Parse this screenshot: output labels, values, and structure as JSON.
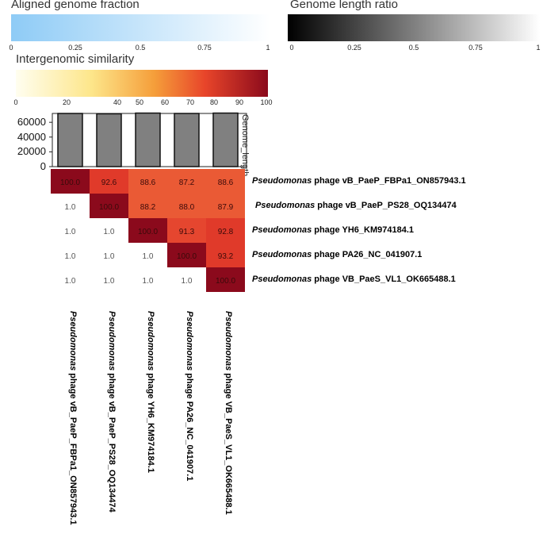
{
  "legends": {
    "aligned": {
      "title": "Aligned genome fraction",
      "ticks": [
        "0",
        "0.25",
        "0.5",
        "0.75",
        "1"
      ],
      "colors": [
        "#8ecbf6",
        "#ffffff"
      ]
    },
    "length_ratio": {
      "title": "Genome length ratio",
      "ticks": [
        "0",
        "0.25",
        "0.5",
        "0.75",
        "1"
      ],
      "colors": [
        "#000000",
        "#ffffff"
      ]
    },
    "similarity": {
      "title": "Intergenomic similarity",
      "ticks": [
        "0",
        "20",
        "40",
        "50",
        "60",
        "70",
        "80",
        "90",
        "100"
      ],
      "colors": [
        "#fffef0",
        "#fde68a",
        "#f59e3a",
        "#e8452a",
        "#8b0a1c"
      ]
    }
  },
  "chart_data": {
    "type": "heatmap",
    "genome_length_label": "Genome_length",
    "bar_fill": "#808080",
    "genome_length_axis": {
      "ticks": [
        "60000",
        "40000",
        "20000",
        "0"
      ],
      "ylim": [
        0,
        72000
      ]
    },
    "genome_lengths": [
      72000,
      71500,
      72500,
      72000,
      72500
    ],
    "phage_prefix": "Pseudomonas",
    "phages": [
      "phage vB_PaeP_FBPa1_ON857943.1",
      "phage vB_PaeP_PS28_OQ134474",
      "phage YH6_KM974184.1",
      "phage PA26_NC_041907.1",
      "phage VB_PaeS_VL1_OK665488.1"
    ],
    "cells": [
      [
        "100.0",
        "92.6",
        "88.6",
        "87.2",
        "88.6"
      ],
      [
        "1.0",
        "100.0",
        "88.2",
        "88.0",
        "87.9"
      ],
      [
        "1.0",
        "1.0",
        "100.0",
        "91.3",
        "92.8"
      ],
      [
        "1.0",
        "1.0",
        "1.0",
        "100.0",
        "93.2"
      ],
      [
        "1.0",
        "1.0",
        "1.0",
        "1.0",
        "100.0"
      ]
    ]
  }
}
